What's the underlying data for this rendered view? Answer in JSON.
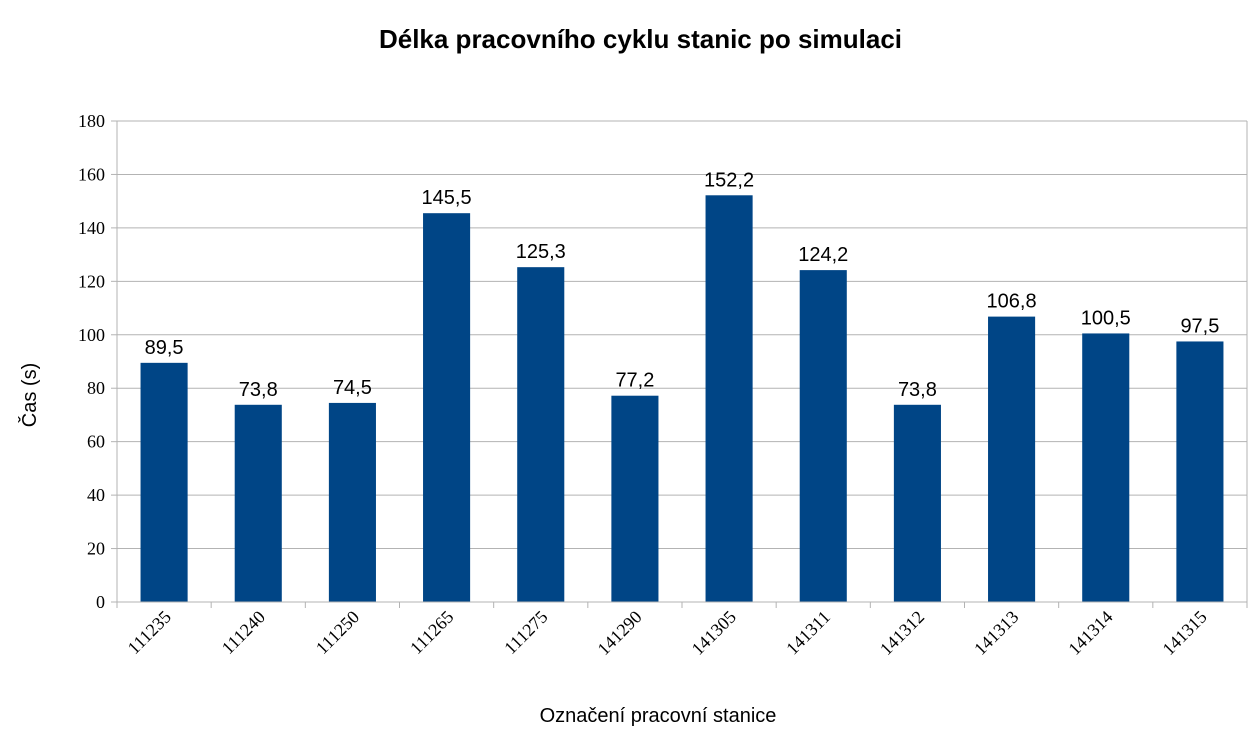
{
  "chart_data": {
    "type": "bar",
    "title": "Délka pracovního cyklu stanic po simulaci",
    "xlabel": "Označení pracovní stanice",
    "ylabel": "Čas (s)",
    "categories": [
      "111235",
      "111240",
      "111250",
      "111265",
      "111275",
      "141290",
      "141305",
      "141311",
      "141312",
      "141313",
      "141314",
      "141315"
    ],
    "values": [
      89.5,
      73.8,
      74.5,
      145.5,
      125.3,
      77.2,
      152.2,
      124.2,
      73.8,
      106.8,
      100.5,
      97.5
    ],
    "value_labels": [
      "89,5",
      "73,8",
      "74,5",
      "145,5",
      "125,3",
      "77,2",
      "152,2",
      "124,2",
      "73,8",
      "106,8",
      "100,5",
      "97,5"
    ],
    "ylim": [
      0,
      180
    ],
    "yticks": [
      0,
      20,
      40,
      60,
      80,
      100,
      120,
      140,
      160,
      180
    ],
    "grid": true,
    "legend": "none",
    "bar_color": "#004586",
    "grid_color": "#b3b3b3"
  }
}
